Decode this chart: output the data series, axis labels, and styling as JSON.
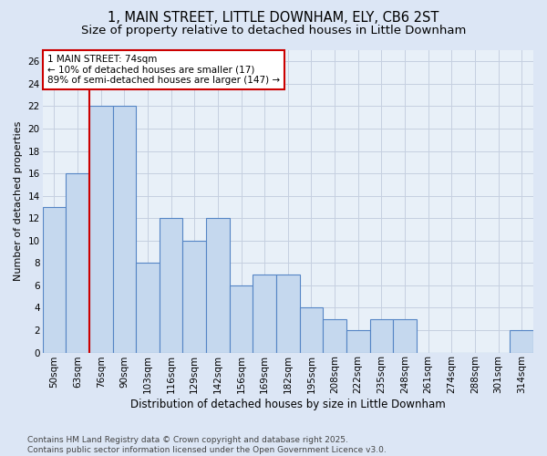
{
  "title1": "1, MAIN STREET, LITTLE DOWNHAM, ELY, CB6 2ST",
  "title2": "Size of property relative to detached houses in Little Downham",
  "xlabel": "Distribution of detached houses by size in Little Downham",
  "ylabel": "Number of detached properties",
  "categories": [
    "50sqm",
    "63sqm",
    "76sqm",
    "90sqm",
    "103sqm",
    "116sqm",
    "129sqm",
    "142sqm",
    "156sqm",
    "169sqm",
    "182sqm",
    "195sqm",
    "208sqm",
    "222sqm",
    "235sqm",
    "248sqm",
    "261sqm",
    "274sqm",
    "288sqm",
    "301sqm",
    "314sqm"
  ],
  "values": [
    13,
    16,
    22,
    22,
    8,
    12,
    10,
    12,
    6,
    7,
    7,
    4,
    3,
    2,
    3,
    3,
    0,
    0,
    0,
    0,
    2
  ],
  "bar_color": "#c5d8ee",
  "bar_edge_color": "#5585c5",
  "vline_color": "#cc0000",
  "vline_x_index": 1.5,
  "annotation_title": "1 MAIN STREET: 74sqm",
  "annotation_line1": "← 10% of detached houses are smaller (17)",
  "annotation_line2": "89% of semi-detached houses are larger (147) →",
  "annotation_box_facecolor": "#ffffff",
  "annotation_box_edgecolor": "#cc0000",
  "ylim": [
    0,
    27
  ],
  "yticks": [
    0,
    2,
    4,
    6,
    8,
    10,
    12,
    14,
    16,
    18,
    20,
    22,
    24,
    26
  ],
  "background_color": "#dce6f5",
  "plot_bg_color": "#e8f0f8",
  "grid_color": "#c5cfe0",
  "footer": "Contains HM Land Registry data © Crown copyright and database right 2025.\nContains public sector information licensed under the Open Government Licence v3.0.",
  "title1_fontsize": 10.5,
  "title2_fontsize": 9.5,
  "xlabel_fontsize": 8.5,
  "ylabel_fontsize": 8,
  "tick_fontsize": 7.5,
  "annotation_fontsize": 7.5,
  "footer_fontsize": 6.5
}
